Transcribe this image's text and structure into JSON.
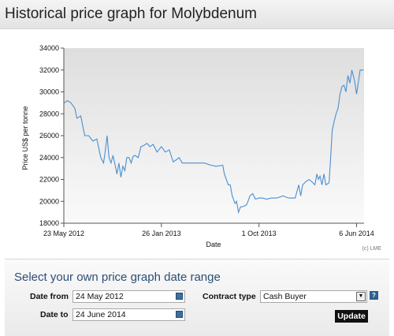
{
  "header": {
    "title": "Historical price graph for Molybdenum"
  },
  "colors": {
    "line": "#4a8fd0",
    "plot_bg_top": "#dedede",
    "plot_bg_bottom": "#fafafa",
    "panel_title": "#2b4e76"
  },
  "chart_data": {
    "type": "line",
    "title": "",
    "xlabel": "Date",
    "ylabel": "Price US$ per tonne",
    "ylim": [
      18000,
      34000
    ],
    "yticks": [
      18000,
      20000,
      22000,
      24000,
      26000,
      28000,
      30000,
      32000,
      34000
    ],
    "xlim": [
      "2012-05-23",
      "2014-06-25"
    ],
    "xticks": [
      {
        "date": "2012-05-23",
        "label": "23 May 2012"
      },
      {
        "date": "2013-01-26",
        "label": "26 Jan 2013"
      },
      {
        "date": "2013-10-01",
        "label": "1 Oct 2013"
      },
      {
        "date": "2014-06-06",
        "label": "6 Jun 2014"
      }
    ],
    "grid": false,
    "credit": "(c) LME",
    "series": [
      {
        "x": [
          "2012-05-24",
          "2012-06-01",
          "2012-06-10",
          "2012-06-20",
          "2012-06-25",
          "2012-07-05",
          "2012-07-15",
          "2012-07-25",
          "2012-08-05",
          "2012-08-15",
          "2012-08-25",
          "2012-09-01",
          "2012-09-05",
          "2012-09-10",
          "2012-09-15",
          "2012-09-20",
          "2012-09-25",
          "2012-10-01",
          "2012-10-05",
          "2012-10-10",
          "2012-10-15",
          "2012-10-20",
          "2012-10-25",
          "2012-10-30",
          "2012-11-05",
          "2012-11-10",
          "2012-11-15",
          "2012-11-20",
          "2012-11-28",
          "2012-12-05",
          "2012-12-12",
          "2012-12-20",
          "2012-12-28",
          "2013-01-05",
          "2013-01-15",
          "2013-01-26",
          "2013-02-05",
          "2013-02-15",
          "2013-02-25",
          "2013-03-05",
          "2013-03-12",
          "2013-03-20",
          "2013-04-01",
          "2013-04-15",
          "2013-05-01",
          "2013-05-15",
          "2013-06-01",
          "2013-06-15",
          "2013-07-01",
          "2013-07-05",
          "2013-07-15",
          "2013-07-20",
          "2013-07-25",
          "2013-08-01",
          "2013-08-05",
          "2013-08-10",
          "2013-08-15",
          "2013-08-20",
          "2013-08-25",
          "2013-08-28",
          "2013-09-01",
          "2013-09-08",
          "2013-09-15",
          "2013-09-22",
          "2013-10-01",
          "2013-10-10",
          "2013-10-20",
          "2013-11-01",
          "2013-11-15",
          "2013-12-01",
          "2013-12-15",
          "2014-01-01",
          "2014-01-10",
          "2014-01-15",
          "2014-01-20",
          "2014-01-28",
          "2014-02-05",
          "2014-02-12",
          "2014-02-20",
          "2014-02-25",
          "2014-03-01",
          "2014-03-05",
          "2014-03-10",
          "2014-03-15",
          "2014-03-20",
          "2014-03-28",
          "2014-04-01",
          "2014-04-05",
          "2014-04-10",
          "2014-04-15",
          "2014-04-20",
          "2014-04-25",
          "2014-04-30",
          "2014-05-05",
          "2014-05-10",
          "2014-05-15",
          "2014-05-20",
          "2014-05-25",
          "2014-06-01",
          "2014-06-06",
          "2014-06-15",
          "2014-06-24"
        ],
        "y": [
          29000,
          29200,
          29000,
          28500,
          27600,
          27800,
          26000,
          26000,
          25500,
          25700,
          24000,
          23500,
          24500,
          26000,
          24000,
          23500,
          24200,
          23200,
          22500,
          23500,
          22200,
          23200,
          22800,
          24000,
          24000,
          23500,
          24100,
          24200,
          24000,
          25000,
          25100,
          25300,
          25000,
          25200,
          24500,
          25000,
          24500,
          24700,
          23600,
          23800,
          24000,
          23500,
          23500,
          23500,
          23500,
          23500,
          23300,
          23200,
          23300,
          22500,
          21500,
          21500,
          20500,
          19800,
          20000,
          19000,
          19500,
          19500,
          19600,
          19600,
          19800,
          20500,
          20700,
          20200,
          20300,
          20300,
          20200,
          20300,
          20300,
          20500,
          20300,
          20300,
          21500,
          20500,
          21500,
          21800,
          22000,
          21800,
          21500,
          22500,
          22000,
          22300,
          21500,
          22500,
          21500,
          21700,
          24000,
          26500,
          27300,
          28000,
          28500,
          29800,
          30500,
          30600,
          30000,
          31500,
          30800,
          32000,
          31000,
          29800,
          32000,
          32000
        ]
      }
    ]
  },
  "form": {
    "title": "Select your own price graph date range",
    "date_from_label": "Date from",
    "date_from_value": "24 May 2012",
    "date_to_label": "Date to",
    "date_to_value": "24 June 2014",
    "contract_type_label": "Contract type",
    "contract_type_value": "Cash Buyer",
    "help_glyph": "?",
    "update_label": "Update"
  }
}
